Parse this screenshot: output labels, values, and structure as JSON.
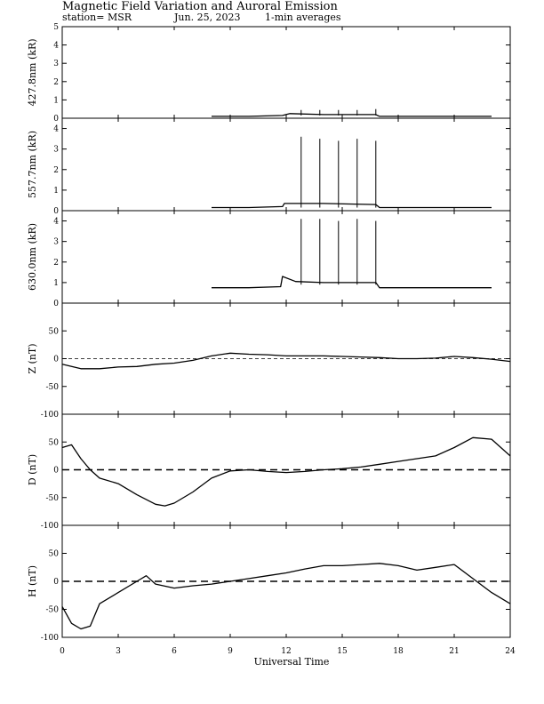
{
  "header": {
    "title": "Magnetic Field Variation and Auroral Emission",
    "station": "station= MSR",
    "date": "Jun. 25, 2023",
    "averaging": "1-min averages"
  },
  "chart_data": [
    {
      "type": "line",
      "ylabel": "427.8nm (kR)",
      "ylim": [
        0,
        5
      ],
      "yticks": [
        0,
        1,
        2,
        3,
        4,
        5
      ],
      "grid": false,
      "x": [
        8.0,
        10.0,
        11.8,
        12.2,
        14.0,
        16.8,
        17.0,
        20.0,
        23.0
      ],
      "y": [
        0.1,
        0.1,
        0.15,
        0.25,
        0.2,
        0.2,
        0.1,
        0.1,
        0.1
      ],
      "spikes": [
        {
          "x": 12.8,
          "y": 0.45
        },
        {
          "x": 13.8,
          "y": 0.45
        },
        {
          "x": 14.8,
          "y": 0.45
        },
        {
          "x": 15.8,
          "y": 0.45
        },
        {
          "x": 16.8,
          "y": 0.5
        }
      ]
    },
    {
      "type": "line",
      "ylabel": "557.7nm (kR)",
      "ylim": [
        0,
        4.5
      ],
      "yticks": [
        0,
        1,
        2,
        3,
        4
      ],
      "grid": false,
      "x": [
        8.0,
        10.0,
        11.8,
        11.9,
        14.0,
        16.8,
        17.0,
        20.0,
        23.0
      ],
      "y": [
        0.15,
        0.15,
        0.2,
        0.35,
        0.35,
        0.3,
        0.15,
        0.15,
        0.15
      ],
      "spikes": [
        {
          "x": 12.8,
          "y": 3.6
        },
        {
          "x": 13.8,
          "y": 3.5
        },
        {
          "x": 14.8,
          "y": 3.4
        },
        {
          "x": 15.8,
          "y": 3.5
        },
        {
          "x": 16.8,
          "y": 3.4
        }
      ]
    },
    {
      "type": "line",
      "ylabel": "630.0nm (kR)",
      "ylim": [
        0,
        4.5
      ],
      "yticks": [
        0,
        1,
        2,
        3,
        4
      ],
      "grid": false,
      "x": [
        8.0,
        10.0,
        11.7,
        11.8,
        12.5,
        14.0,
        16.8,
        17.0,
        20.0,
        23.0
      ],
      "y": [
        0.75,
        0.75,
        0.8,
        1.3,
        1.05,
        1.0,
        1.0,
        0.75,
        0.75,
        0.75
      ],
      "spikes": [
        {
          "x": 12.8,
          "y": 4.1
        },
        {
          "x": 13.8,
          "y": 4.1
        },
        {
          "x": 14.8,
          "y": 4.0
        },
        {
          "x": 15.8,
          "y": 4.1
        },
        {
          "x": 16.8,
          "y": 4.0
        }
      ]
    },
    {
      "type": "line",
      "ylabel": "Z (nT)",
      "ylim": [
        -100,
        100
      ],
      "yticks": [
        -100,
        -50,
        0,
        50
      ],
      "baseline": 0,
      "x": [
        0,
        1,
        2,
        3,
        4,
        5,
        6,
        7,
        8,
        9,
        10,
        11,
        12,
        13,
        14,
        15,
        16,
        17,
        18,
        19,
        20,
        21,
        22,
        23,
        24
      ],
      "y": [
        -10,
        -18,
        -18,
        -15,
        -14,
        -10,
        -8,
        -3,
        5,
        10,
        8,
        7,
        5,
        5,
        5,
        4,
        3,
        2,
        0,
        0,
        1,
        4,
        2,
        -1,
        -5
      ]
    },
    {
      "type": "line",
      "ylabel": "D (nT)",
      "ylim": [
        -100,
        100
      ],
      "yticks": [
        -100,
        -50,
        0,
        50
      ],
      "baseline": 0,
      "x": [
        0,
        0.5,
        1,
        1.5,
        2,
        3,
        4,
        5,
        5.5,
        6,
        7,
        8,
        9,
        10,
        11,
        12,
        13,
        14,
        15,
        16,
        17,
        18,
        19,
        20,
        21,
        22,
        23,
        24
      ],
      "y": [
        40,
        45,
        20,
        0,
        -15,
        -25,
        -45,
        -62,
        -65,
        -60,
        -40,
        -15,
        -2,
        0,
        -3,
        -5,
        -3,
        0,
        2,
        5,
        10,
        15,
        20,
        25,
        40,
        58,
        55,
        25
      ]
    },
    {
      "type": "line",
      "ylabel": "H (nT)",
      "ylim": [
        -100,
        100
      ],
      "yticks": [
        -100,
        -50,
        0,
        50
      ],
      "baseline": 0,
      "x": [
        0,
        0.5,
        1,
        1.5,
        2,
        3,
        4,
        4.5,
        5,
        6,
        7,
        8,
        9,
        10,
        11,
        12,
        13,
        14,
        15,
        16,
        17,
        18,
        19,
        20,
        21,
        22,
        23,
        24
      ],
      "y": [
        -45,
        -75,
        -85,
        -80,
        -40,
        -20,
        0,
        10,
        -5,
        -12,
        -8,
        -5,
        0,
        5,
        10,
        15,
        22,
        28,
        28,
        30,
        32,
        28,
        20,
        25,
        30,
        5,
        -20,
        -40
      ]
    }
  ],
  "x_axis": {
    "label": "Universal Time",
    "ticks": [
      0,
      3,
      6,
      9,
      12,
      15,
      18,
      21,
      24
    ],
    "xlim": [
      0,
      24
    ]
  }
}
